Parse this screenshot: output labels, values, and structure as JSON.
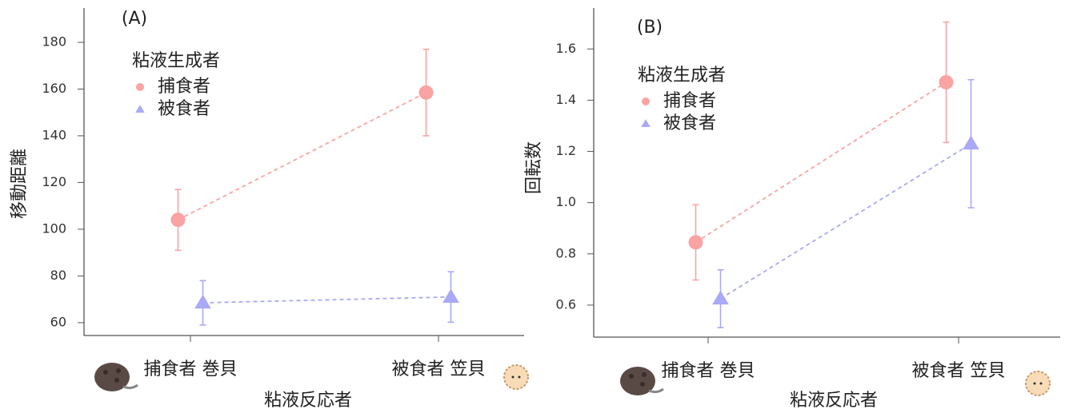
{
  "chart_data": [
    {
      "type": "errorbar-line",
      "panel_label": "(A)",
      "y_label": "移動距離",
      "x_label": "粘液反応者",
      "categories": [
        "捕食者 巻貝",
        "被食者 笠貝"
      ],
      "legend_title": "粘液生成者",
      "legend": "upper left",
      "ylim": [
        54.5,
        194.7
      ],
      "yticks": [
        60,
        80,
        100,
        120,
        140,
        160,
        180
      ],
      "series": [
        {
          "name": "捕食者",
          "color": "#f9a3a3",
          "marker": "circle",
          "values": [
            104,
            158.5
          ],
          "errors": [
            13,
            18.5
          ]
        },
        {
          "name": "被食者",
          "color": "#a9a9f7",
          "marker": "triangle",
          "values": [
            68.5,
            71
          ],
          "errors": [
            9.5,
            10.8
          ]
        }
      ]
    },
    {
      "type": "errorbar-line",
      "panel_label": "(B)",
      "y_label": "回転数",
      "x_label": "粘液反応者",
      "categories": [
        "捕食者 巻貝",
        "被食者 笠貝"
      ],
      "legend_title": "粘液生成者",
      "legend": "upper left",
      "ylim": [
        0.475,
        1.76
      ],
      "yticks": [
        {
          "value": 0.6,
          "label": "0.6"
        },
        {
          "value": 0.8,
          "label": "0.8"
        },
        {
          "value": 1.0,
          "label": "1.0"
        },
        {
          "value": 1.2,
          "label": "1.2"
        },
        {
          "value": 1.4,
          "label": "1.4"
        },
        {
          "value": 1.6,
          "label": "1.6"
        }
      ],
      "series": [
        {
          "name": "捕食者",
          "color": "#f9a3a3",
          "marker": "circle",
          "values": [
            0.845,
            1.47
          ],
          "errors": [
            0.147,
            0.235
          ]
        },
        {
          "name": "被食者",
          "color": "#a9a9f7",
          "marker": "triangle",
          "values": [
            0.625,
            1.23
          ],
          "errors": [
            0.113,
            0.25
          ]
        }
      ]
    }
  ]
}
